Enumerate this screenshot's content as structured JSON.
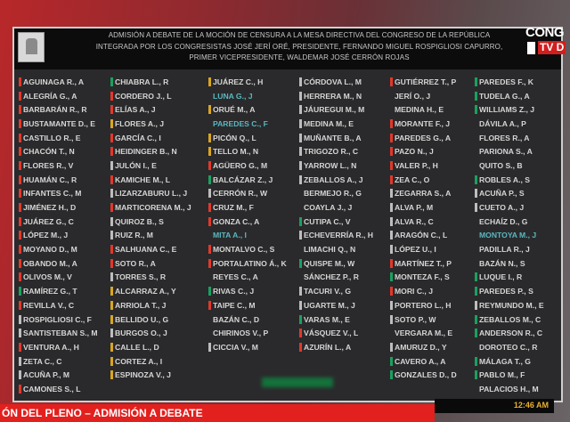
{
  "header": {
    "title": "ADMISIÓN A DEBATE DE LA MOCIÓN DE CENSURA A LA MESA DIRECTIVA DEL CONGRESO DE LA REPÚBLICA INTEGRADA POR LOS CONGRESISTAS JOSÉ JERÍ ORÉ, PRESIDENTE, FERNANDO MIGUEL ROSPIGLIOSI CAPURRO, PRIMER VICEPRESIDENTE, WALDEMAR JOSÉ CERRÓN ROJAS"
  },
  "logo": {
    "line1": "CONG",
    "line2": "TV D"
  },
  "banner": {
    "text": "ÓN DEL PLENO – ADMISIÓN A DEBATE"
  },
  "clock": "12:46 AM",
  "vote_colors": {
    "r": "#e2382a",
    "y": "#d9a522",
    "g": "#1aa060",
    "w": "#bdbdbd"
  },
  "columns": [
    [
      [
        "AGUINAGA R., A",
        "r"
      ],
      [
        "ALEGRÍA G., A",
        "r"
      ],
      [
        "BARBARÁN R., R",
        "r"
      ],
      [
        "BUSTAMANTE D., E",
        "r"
      ],
      [
        "CASTILLO R., E",
        "r"
      ],
      [
        "CHACÓN T., N",
        "r"
      ],
      [
        "FLORES R., V",
        "r"
      ],
      [
        "HUAMÁN C., R",
        "r"
      ],
      [
        "INFANTES C., M",
        "r"
      ],
      [
        "JIMÉNEZ H., D",
        "r"
      ],
      [
        "JUÁREZ G., C",
        "r"
      ],
      [
        "LÓPEZ M., J",
        "r"
      ],
      [
        "MOYANO D., M",
        "r"
      ],
      [
        "OBANDO M., A",
        "r"
      ],
      [
        "OLIVOS M., V",
        "r"
      ],
      [
        "RAMÍREZ G., T",
        "g"
      ],
      [
        "REVILLA V., C",
        "r"
      ],
      [
        "ROSPIGLIOSI C., F",
        "w"
      ],
      [
        "SANTISTEBAN S., M",
        "w"
      ],
      [
        "VENTURA A., H",
        "r"
      ],
      [
        "ZETA C., C",
        "w"
      ],
      [
        "ACUÑA P., M",
        "w"
      ],
      [
        "CAMONES S., L",
        "r"
      ]
    ],
    [
      [
        "CHIABRA L., R",
        "g"
      ],
      [
        "CORDERO J., L",
        "r"
      ],
      [
        "ELÍAS A., J",
        "r"
      ],
      [
        "FLORES A., J",
        "y"
      ],
      [
        "GARCÍA C., I",
        "r"
      ],
      [
        "HEIDINGER B., N",
        "r"
      ],
      [
        "JULÓN I., E",
        "w"
      ],
      [
        "KAMICHE M., L",
        "r"
      ],
      [
        "LIZARZABURU L., J",
        "w"
      ],
      [
        "MARTICORENA M., J",
        "r"
      ],
      [
        "QUIROZ B., S",
        "w"
      ],
      [
        "RUIZ R., M",
        "w"
      ],
      [
        "SALHUANA C., E",
        "r"
      ],
      [
        "SOTO R., A",
        "r"
      ],
      [
        "TORRES S., R",
        "w"
      ],
      [
        "ALCARRAZ A., Y",
        "y"
      ],
      [
        "ARRIOLA T., J",
        "y"
      ],
      [
        "BELLIDO U., G",
        "y"
      ],
      [
        "BURGOS O., J",
        "w"
      ],
      [
        "CALLE L., D",
        "y"
      ],
      [
        "CORTEZ A., I",
        "y"
      ],
      [
        "ESPINOZA V., J",
        "y"
      ]
    ],
    [
      [
        "JUÁREZ C., H",
        "y"
      ],
      [
        "LUNA G., J",
        "n",
        1
      ],
      [
        "ORUÉ M., A",
        "y"
      ],
      [
        "PAREDES C., F",
        "n",
        1
      ],
      [
        "PICÓN Q., L",
        "y"
      ],
      [
        "TELLO M., N",
        "y"
      ],
      [
        "AGÜERO G., M",
        "r"
      ],
      [
        "BALCÁZAR Z., J",
        "g"
      ],
      [
        "CERRÓN R., W",
        "w"
      ],
      [
        "CRUZ M., F",
        "r"
      ],
      [
        "GONZA C., A",
        "r"
      ],
      [
        "MITA A., I",
        "n",
        1
      ],
      [
        "MONTALVO C., S",
        "r"
      ],
      [
        "PORTALATINO Á., K",
        "r"
      ],
      [
        "REYES C., A",
        "n"
      ],
      [
        "RIVAS C., J",
        "g"
      ],
      [
        "TAIPE C., M",
        "r"
      ],
      [
        "BAZÁN C., D",
        "n"
      ],
      [
        "CHIRINOS V., P",
        "n"
      ],
      [
        "CICCIA V., M",
        "w"
      ]
    ],
    [
      [
        "CÓRDOVA L., M",
        "w"
      ],
      [
        "HERRERA M., N",
        "w"
      ],
      [
        "JÁUREGUI M., M",
        "w"
      ],
      [
        "MEDINA M., E",
        "w"
      ],
      [
        "MUÑANTE B., A",
        "w"
      ],
      [
        "TRIGOZO R., C",
        "w"
      ],
      [
        "YARROW L., N",
        "w"
      ],
      [
        "ZEBALLOS A., J",
        "w"
      ],
      [
        "BERMEJO R., G",
        "n"
      ],
      [
        "COAYLA J., J",
        "n"
      ],
      [
        "CUTIPA C., V",
        "g"
      ],
      [
        "ECHEVERRÍA R., H",
        "w"
      ],
      [
        "LIMACHI Q., N",
        "n"
      ],
      [
        "QUISPE M., W",
        "g"
      ],
      [
        "SÁNCHEZ P., R",
        "n"
      ],
      [
        "TACURI V., G",
        "w"
      ],
      [
        "UGARTE M., J",
        "w"
      ],
      [
        "VARAS M., E",
        "g"
      ],
      [
        "VÁSQUEZ V., L",
        "r"
      ],
      [
        "AZURÍN L., A",
        "r"
      ]
    ],
    [
      [
        "GUTIÉRREZ T., P",
        "r"
      ],
      [
        "JERÍ O., J",
        "n"
      ],
      [
        "MEDINA H., E",
        "n"
      ],
      [
        "MORANTE F., J",
        "r"
      ],
      [
        "PAREDES G., A",
        "r"
      ],
      [
        "PAZO N., J",
        "r"
      ],
      [
        "VALER P., H",
        "r"
      ],
      [
        "ZEA C., O",
        "r"
      ],
      [
        "ZEGARRA S., A",
        "w"
      ],
      [
        "ALVA P., M",
        "w"
      ],
      [
        "ALVA R., C",
        "w"
      ],
      [
        "ARAGÓN C., L",
        "w"
      ],
      [
        "LÓPEZ U., I",
        "w"
      ],
      [
        "MARTÍNEZ T., P",
        "r"
      ],
      [
        "MONTEZA F., S",
        "g"
      ],
      [
        "MORI C., J",
        "r"
      ],
      [
        "PORTERO L., H",
        "w"
      ],
      [
        "SOTO P., W",
        "w"
      ],
      [
        "VERGARA M., E",
        "n"
      ],
      [
        "AMURUZ D., Y",
        "w"
      ],
      [
        "CAVERO A., A",
        "g"
      ],
      [
        "GONZALES D., D",
        "g"
      ]
    ],
    [
      [
        "PAREDES F., K",
        "g"
      ],
      [
        "TUDELA G., A",
        "g"
      ],
      [
        "WILLIAMS Z., J",
        "g"
      ],
      [
        "DÁVILA A., P",
        "n"
      ],
      [
        "FLORES R., A",
        "n"
      ],
      [
        "PARIONA S., A",
        "n"
      ],
      [
        "QUITO S., B",
        "n"
      ],
      [
        "ROBLES A., S",
        "g"
      ],
      [
        "ACUÑA P., S",
        "w"
      ],
      [
        "CUETO A., J",
        "w"
      ],
      [
        "ECHAÍZ D., G",
        "n"
      ],
      [
        "MONTOYA M., J",
        "n",
        1
      ],
      [
        "PADILLA R., J",
        "n"
      ],
      [
        "BAZÁN N., S",
        "n"
      ],
      [
        "LUQUE I., R",
        "g"
      ],
      [
        "PAREDES P., S",
        "g"
      ],
      [
        "REYMUNDO M., E",
        "w"
      ],
      [
        "ZEBALLOS M., C",
        "g"
      ],
      [
        "ANDERSON R., C",
        "g"
      ],
      [
        "DOROTEO C., R",
        "n"
      ],
      [
        "MÁLAGA T., G",
        "g"
      ],
      [
        "PABLO M., F",
        "g"
      ],
      [
        "PALACIOS H., M",
        "n"
      ]
    ]
  ]
}
